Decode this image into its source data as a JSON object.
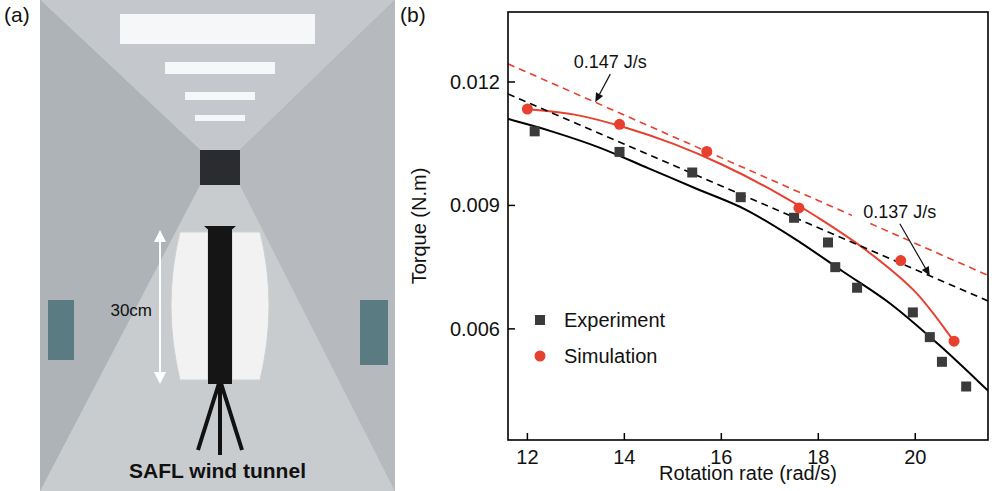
{
  "photo": {
    "panel_label": "(a)",
    "scale_label": "30cm",
    "caption": "SAFL wind tunnel"
  },
  "chart_data": {
    "type": "scatter",
    "panel_label": "(b)",
    "x_label": "Rotation rate (rad/s)",
    "y_label": "Torque (N.m)",
    "xlim": [
      11.6,
      21.5
    ],
    "ylim": [
      0.0033,
      0.0137
    ],
    "xticks": [
      12,
      14,
      16,
      18,
      20
    ],
    "yticks": [
      0.006,
      0.009,
      0.012
    ],
    "grid": false,
    "legend": "lower left",
    "series": [
      {
        "name": "Experiment",
        "type": "scatter",
        "marker": "square",
        "color": "#3b3b3b",
        "x": [
          12.15,
          13.9,
          15.4,
          16.4,
          17.5,
          18.2,
          18.35,
          18.8,
          19.95,
          20.3,
          20.55,
          21.05
        ],
        "values": [
          0.0108,
          0.0103,
          0.0098,
          0.0092,
          0.0087,
          0.0081,
          0.0075,
          0.007,
          0.0064,
          0.0058,
          0.0052,
          0.0046
        ]
      },
      {
        "name": "Simulation",
        "type": "scatter",
        "marker": "circle",
        "color": "#e8402f",
        "x": [
          12.0,
          13.9,
          15.7,
          17.6,
          19.7,
          20.8
        ],
        "values": [
          0.01134,
          0.01097,
          0.01031,
          0.00894,
          0.00766,
          0.0057
        ]
      },
      {
        "type": "line",
        "line_style": "solid",
        "color": "#000000",
        "x": [
          11.6,
          12.5,
          13.5,
          14.5,
          15.5,
          16.5,
          17.5,
          18.5,
          19.5,
          20.5,
          21.5
        ],
        "values": [
          0.0111,
          0.0108,
          0.0104,
          0.0099,
          0.0094,
          0.0089,
          0.0082,
          0.0074,
          0.0066,
          0.0056,
          0.0045
        ]
      },
      {
        "type": "line",
        "line_style": "solid",
        "color": "#e8402f",
        "x": [
          12,
          13,
          14,
          15,
          16,
          17,
          18,
          19,
          20,
          20.8
        ],
        "values": [
          0.01134,
          0.0112,
          0.0109,
          0.0105,
          0.01,
          0.0094,
          0.0087,
          0.0079,
          0.0069,
          0.0057
        ]
      },
      {
        "type": "line",
        "line_style": "dashed",
        "color": "#000000",
        "x": [
          11.6,
          21.5
        ],
        "values": [
          0.01171,
          0.00668
        ]
      },
      {
        "type": "line",
        "line_style": "dashed",
        "color": "#e8402f",
        "x": [
          11.6,
          21.5
        ],
        "values": [
          0.01244,
          0.0073
        ]
      }
    ],
    "annotations": [
      {
        "text": "0.147 J/s",
        "x": 13.4,
        "y": 0.01151
      },
      {
        "text": "0.137 J/s",
        "x": 20.3,
        "y": 0.00729
      }
    ]
  }
}
